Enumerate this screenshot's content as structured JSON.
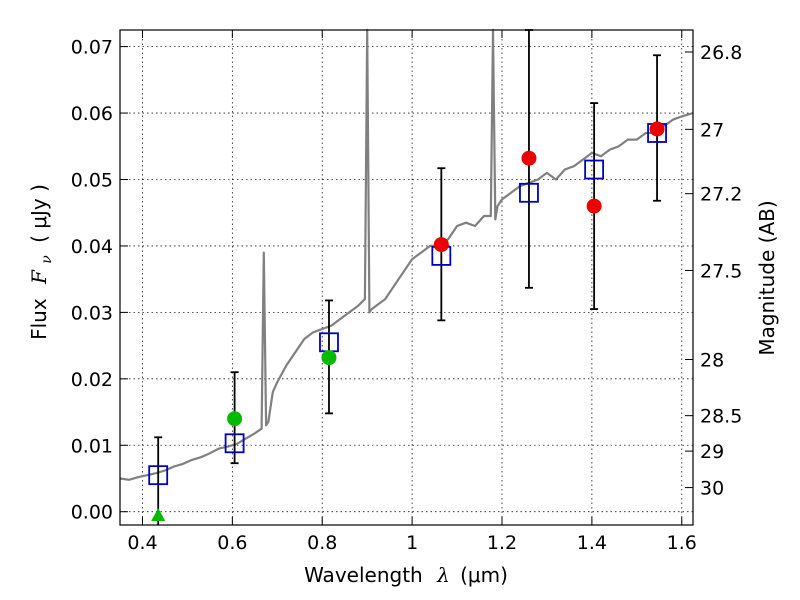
{
  "chart_data": {
    "type": "scatter",
    "xlabel": {
      "prefix": "Wavelength",
      "symbol": "λ",
      "unit": "(μm)"
    },
    "ylabel": {
      "prefix": "Flux",
      "symbol": "F",
      "subscript": "ν",
      "unit": "( μJy )"
    },
    "y2label": "Magnitude (AB)",
    "xlim": [
      0.35,
      1.625
    ],
    "ylim": [
      -0.002,
      0.0725
    ],
    "x_ticks": [
      0.4,
      0.6,
      0.8,
      1.0,
      1.2,
      1.4,
      1.6
    ],
    "x_tick_labels": [
      "0.4",
      "0.6",
      "0.8",
      "1",
      "1.2",
      "1.4",
      "1.6"
    ],
    "y_ticks": [
      0.0,
      0.01,
      0.02,
      0.03,
      0.04,
      0.05,
      0.06,
      0.07
    ],
    "y_tick_labels": [
      "0.00",
      "0.01",
      "0.02",
      "0.03",
      "0.04",
      "0.05",
      "0.06",
      "0.07"
    ],
    "mag_ticks": [
      26.8,
      27.0,
      27.2,
      27.5,
      28.0,
      28.5,
      29.0,
      30.0
    ],
    "mag_tick_labels": [
      "26.8",
      "27",
      "27.2",
      "27.5",
      "28",
      "28.5",
      "29",
      "30"
    ],
    "grid": true,
    "colors": {
      "sed": "#808080",
      "model": "#0000c0",
      "green": "#00bb00",
      "red": "#ee0000",
      "error": "#000000"
    },
    "sed_spectrum": {
      "x": [
        0.35,
        0.37,
        0.39,
        0.41,
        0.43,
        0.45,
        0.47,
        0.49,
        0.51,
        0.53,
        0.55,
        0.57,
        0.59,
        0.61,
        0.63,
        0.65,
        0.665,
        0.67,
        0.675,
        0.68,
        0.69,
        0.7,
        0.72,
        0.74,
        0.76,
        0.78,
        0.8,
        0.82,
        0.84,
        0.86,
        0.88,
        0.895,
        0.9,
        0.905,
        0.91,
        0.92,
        0.94,
        0.96,
        0.98,
        1.0,
        1.02,
        1.04,
        1.06,
        1.08,
        1.1,
        1.12,
        1.14,
        1.16,
        1.175,
        1.18,
        1.185,
        1.19,
        1.2,
        1.22,
        1.24,
        1.26,
        1.28,
        1.3,
        1.32,
        1.34,
        1.36,
        1.38,
        1.4,
        1.42,
        1.44,
        1.46,
        1.48,
        1.5,
        1.52,
        1.54,
        1.56,
        1.58,
        1.6,
        1.625
      ],
      "y": [
        0.005,
        0.0048,
        0.0052,
        0.0055,
        0.0058,
        0.0062,
        0.0068,
        0.0072,
        0.0078,
        0.0082,
        0.0088,
        0.0095,
        0.0098,
        0.0102,
        0.011,
        0.0118,
        0.0125,
        0.039,
        0.013,
        0.0135,
        0.018,
        0.0195,
        0.022,
        0.024,
        0.026,
        0.027,
        0.0275,
        0.028,
        0.029,
        0.03,
        0.031,
        0.032,
        0.075,
        0.03,
        0.0305,
        0.031,
        0.032,
        0.034,
        0.036,
        0.038,
        0.039,
        0.04,
        0.04,
        0.041,
        0.043,
        0.0435,
        0.043,
        0.0445,
        0.0445,
        0.074,
        0.044,
        0.046,
        0.047,
        0.048,
        0.049,
        0.0495,
        0.05,
        0.051,
        0.05,
        0.0515,
        0.052,
        0.053,
        0.054,
        0.0535,
        0.0545,
        0.055,
        0.056,
        0.056,
        0.057,
        0.057,
        0.058,
        0.059,
        0.0595,
        0.06
      ]
    },
    "model_points": {
      "x": [
        0.435,
        0.605,
        0.815,
        1.065,
        1.26,
        1.405,
        1.545
      ],
      "y": [
        0.0055,
        0.0103,
        0.0255,
        0.0385,
        0.048,
        0.0515,
        0.057
      ]
    },
    "green_points": {
      "x": [
        0.605,
        0.815
      ],
      "y": [
        0.014,
        0.0232
      ]
    },
    "green_upper_limit": {
      "x": [
        0.435
      ],
      "y": [
        -0.0005
      ]
    },
    "red_points": {
      "x": [
        1.065,
        1.26,
        1.405,
        1.545
      ],
      "y": [
        0.0402,
        0.0532,
        0.046,
        0.0576
      ]
    },
    "error_bars": {
      "x": [
        0.435,
        0.605,
        0.815,
        1.065,
        1.26,
        1.405,
        1.545
      ],
      "low": [
        -0.002,
        0.0073,
        0.0148,
        0.0288,
        0.0337,
        0.0305,
        0.0468
      ],
      "high": [
        0.0112,
        0.021,
        0.0318,
        0.0517,
        0.0735,
        0.0615,
        0.0687
      ]
    }
  }
}
